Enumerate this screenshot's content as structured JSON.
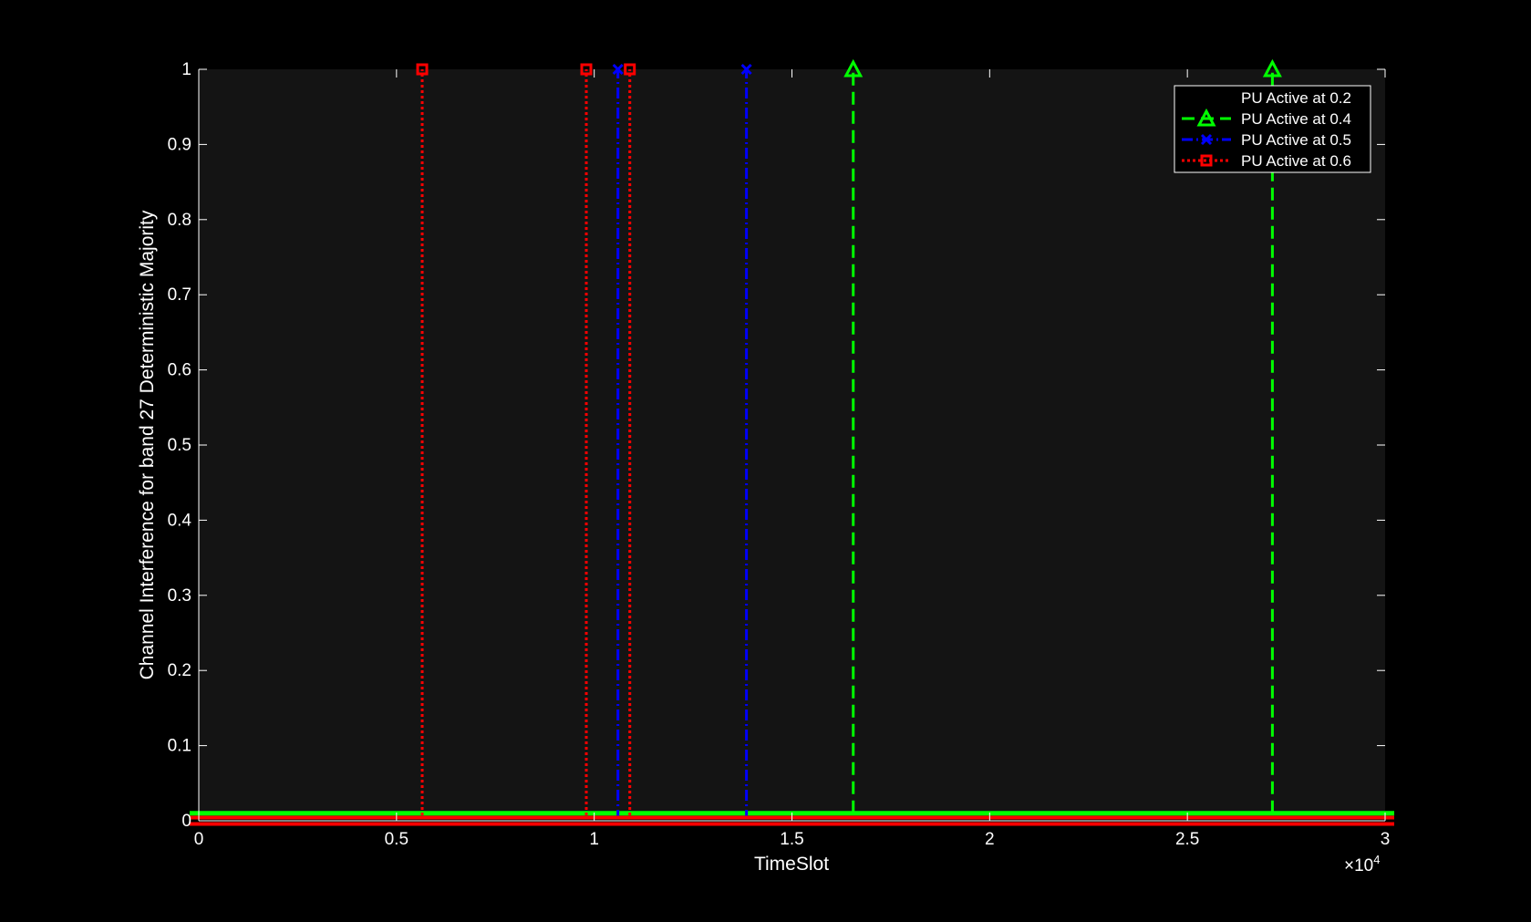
{
  "chart_data": {
    "type": "line",
    "title": "",
    "xlabel": "TimeSlot",
    "ylabel": "Channel Interference for band 27 Deterministic Majority",
    "xlim": [
      0,
      3
    ],
    "ylim": [
      0,
      1
    ],
    "x_exponent_label": "×10",
    "x_exponent_power": "4",
    "x_ticks": [
      0,
      0.5,
      1,
      1.5,
      2,
      2.5,
      3
    ],
    "x_tick_labels": [
      "0",
      "0.5",
      "1",
      "1.5",
      "2",
      "2.5",
      "3"
    ],
    "y_ticks": [
      0,
      0.1,
      0.2,
      0.3,
      0.4,
      0.5,
      0.6,
      0.7,
      0.8,
      0.9,
      1
    ],
    "y_tick_labels": [
      "0",
      "0.1",
      "0.2",
      "0.3",
      "0.4",
      "0.5",
      "0.6",
      "0.7",
      "0.8",
      "0.9",
      "1"
    ],
    "grid": false,
    "legend_position": "top-right",
    "background": "#141414",
    "series": [
      {
        "name": "PU Active at 0.2",
        "color": "#000000",
        "marker": "circle",
        "line_style": "solid",
        "baseline": 0,
        "spikes_x": []
      },
      {
        "name": "PU Active at 0.4",
        "color": "#00ff00",
        "marker": "triangle",
        "line_style": "dashed",
        "baseline": 0.01,
        "spikes_x": [
          1.655,
          2.715
        ]
      },
      {
        "name": "PU Active at 0.5",
        "color": "#0000ff",
        "marker": "x",
        "line_style": "dashdot",
        "baseline": 0,
        "spikes_x": [
          1.06,
          1.385
        ]
      },
      {
        "name": "PU Active at 0.6",
        "color": "#ff0000",
        "marker": "square",
        "line_style": "dotted",
        "baseline": 0,
        "spikes_x": [
          0.565,
          0.98,
          1.09
        ]
      }
    ]
  }
}
